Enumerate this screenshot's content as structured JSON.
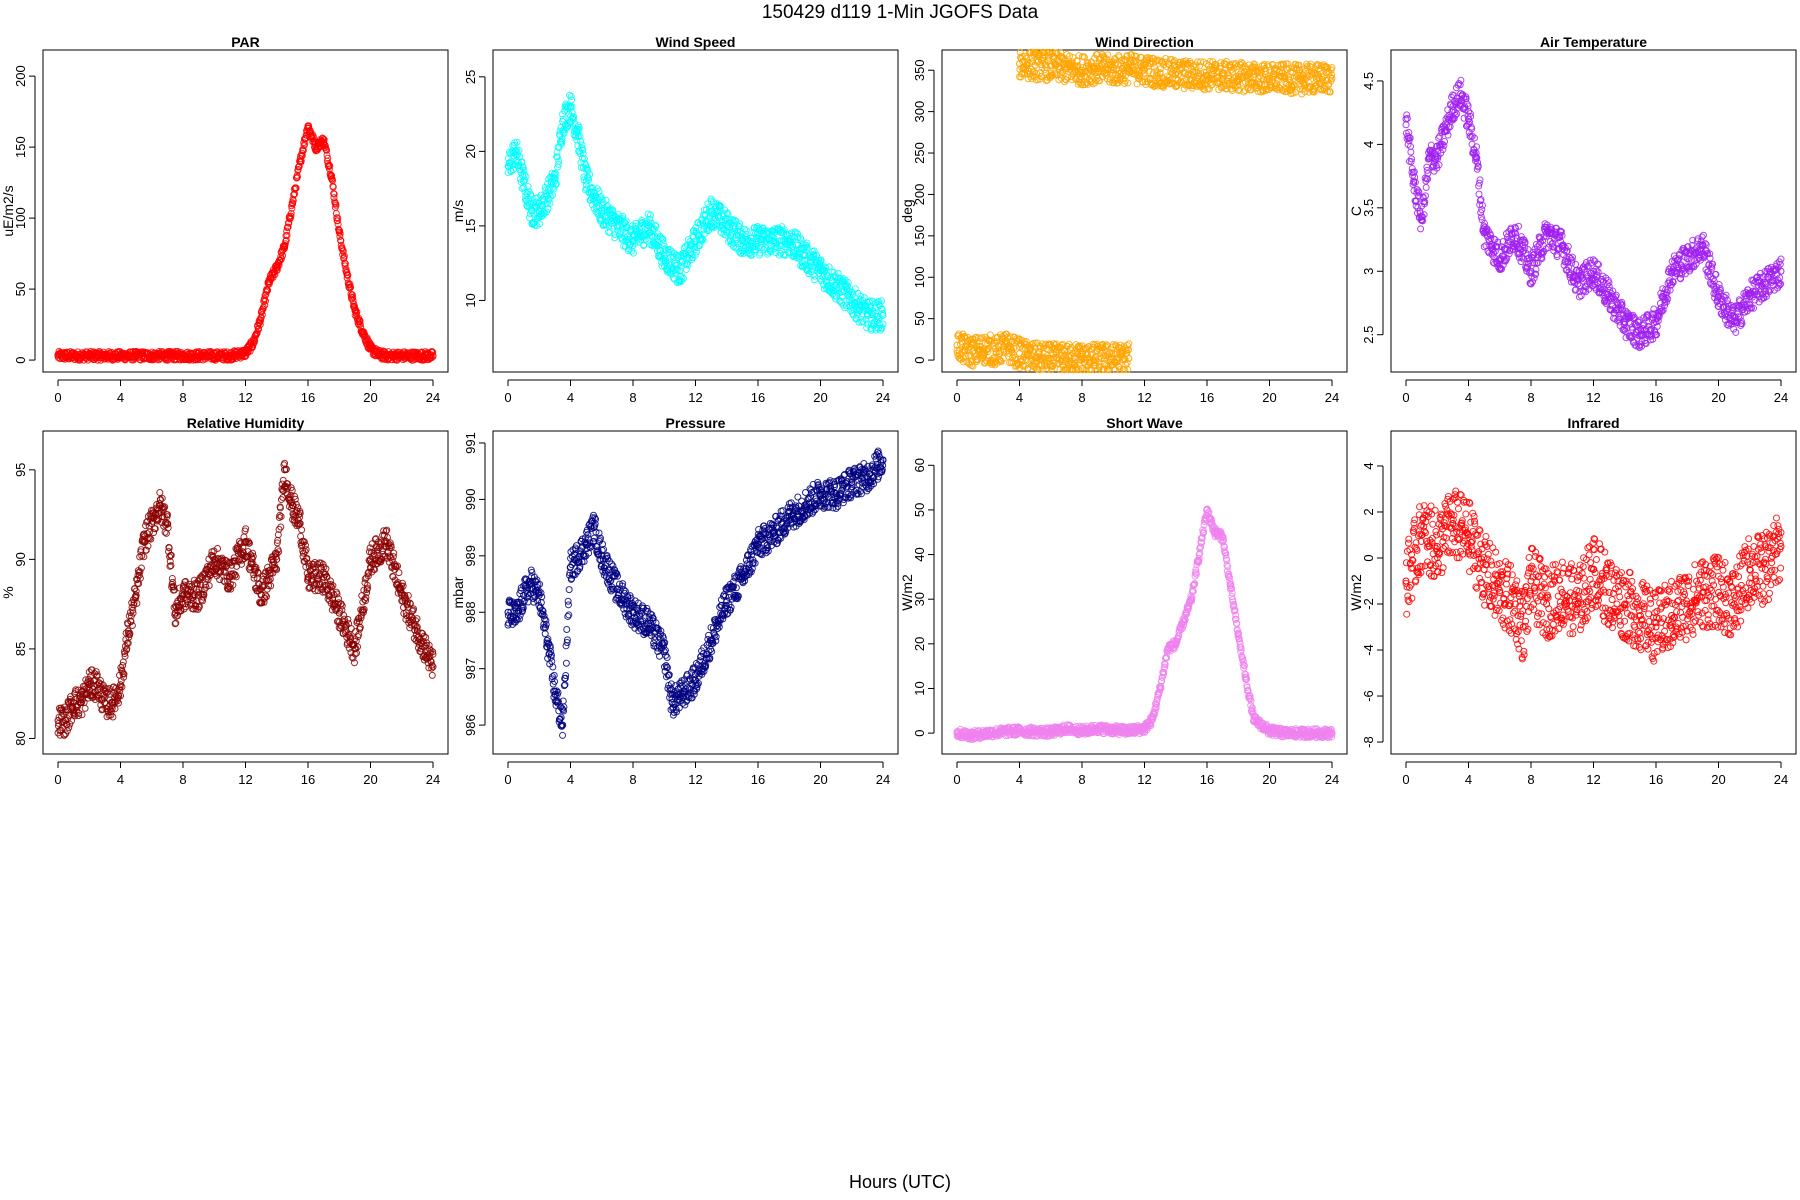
{
  "figure": {
    "title": "150429   d119   1-Min  JGOFS Data",
    "xlabel": "Hours (UTC)"
  },
  "chart_data": [
    {
      "type": "scatter",
      "title": "PAR",
      "ylabel": "uE/m2/s",
      "color": "#ff0000",
      "xlim": [
        0,
        24
      ],
      "ylim": [
        0,
        210
      ],
      "xticks": [
        0,
        4,
        8,
        12,
        16,
        20,
        24
      ],
      "yticks": [
        0,
        50,
        100,
        150,
        200
      ],
      "x": [
        0,
        1,
        2,
        3,
        4,
        5,
        6,
        7,
        8,
        9,
        10,
        11,
        12,
        12.5,
        13,
        13.5,
        14,
        14.5,
        15,
        15.5,
        16,
        16.5,
        17,
        17.5,
        18,
        18.5,
        19,
        19.5,
        20,
        20.5,
        21,
        22,
        23,
        24
      ],
      "y": [
        3,
        3,
        3,
        3,
        3,
        3,
        3,
        3,
        3,
        3,
        3,
        3,
        5,
        12,
        30,
        55,
        65,
        80,
        110,
        140,
        165,
        150,
        155,
        130,
        90,
        60,
        35,
        20,
        8,
        4,
        3,
        3,
        3,
        3
      ]
    },
    {
      "type": "scatter",
      "title": "Wind Speed",
      "ylabel": "m/s",
      "color": "#00ffff",
      "xlim": [
        0,
        24
      ],
      "ylim": [
        6,
        26
      ],
      "xticks": [
        0,
        4,
        8,
        12,
        16,
        20,
        24
      ],
      "yticks": [
        10,
        15,
        20,
        25
      ],
      "x": [
        0,
        0.5,
        1,
        1.5,
        2,
        2.5,
        3,
        3.5,
        4,
        4.5,
        5,
        5.5,
        6,
        7,
        8,
        9,
        10,
        11,
        12,
        13,
        14,
        15,
        16,
        17,
        18,
        19,
        20,
        21,
        22,
        23,
        24
      ],
      "y": [
        19,
        20,
        18,
        16,
        16,
        17,
        18,
        22,
        23,
        21,
        18,
        17,
        16,
        15,
        14,
        15,
        13,
        12,
        14,
        16,
        15,
        14,
        14,
        14,
        14,
        13,
        12,
        11,
        10,
        9,
        9
      ]
    },
    {
      "type": "scatter",
      "title": "Wind Direction",
      "ylabel": "deg",
      "color": "#ffa500",
      "xlim": [
        0,
        24
      ],
      "ylim": [
        0,
        360
      ],
      "xticks": [
        0,
        4,
        8,
        12,
        16,
        20,
        24
      ],
      "yticks": [
        0,
        50,
        100,
        150,
        200,
        250,
        300,
        350
      ],
      "x": [
        0,
        0.5,
        1,
        1.5,
        2,
        2.5,
        3,
        3.5,
        4,
        4.5,
        5,
        6,
        7,
        7.5,
        8,
        11,
        4,
        5,
        6,
        7,
        8,
        9,
        10,
        11,
        12,
        13,
        14,
        15,
        16,
        17,
        18,
        19,
        20,
        21,
        22,
        23,
        24
      ],
      "y": [
        18,
        12,
        10,
        12,
        14,
        10,
        16,
        12,
        8,
        5,
        3,
        2,
        2,
        3,
        2,
        2,
        358,
        356,
        355,
        352,
        350,
        352,
        350,
        352,
        350,
        347,
        345,
        344,
        344,
        343,
        342,
        341,
        340,
        340,
        339,
        340,
        340
      ]
    },
    {
      "type": "scatter",
      "title": "Air Temperature",
      "ylabel": "C",
      "color": "#a020f0",
      "xlim": [
        0,
        24
      ],
      "ylim": [
        2.3,
        4.65
      ],
      "xticks": [
        0,
        4,
        8,
        12,
        16,
        20,
        24
      ],
      "yticks": [
        2.5,
        3.0,
        3.5,
        4.0,
        4.5
      ],
      "x": [
        0,
        0.5,
        1,
        1.5,
        2,
        2.5,
        3,
        3.5,
        4,
        4.5,
        5,
        5.5,
        6,
        7,
        8,
        9,
        10,
        11,
        12,
        13,
        14,
        15,
        16,
        17,
        18,
        19,
        20,
        21,
        22,
        23,
        24
      ],
      "y": [
        4.2,
        3.7,
        3.4,
        3.9,
        3.9,
        4.1,
        4.3,
        4.4,
        4.2,
        3.9,
        3.3,
        3.2,
        3.1,
        3.3,
        3.0,
        3.3,
        3.2,
        2.9,
        3.0,
        2.8,
        2.6,
        2.5,
        2.6,
        3.0,
        3.1,
        3.2,
        2.8,
        2.6,
        2.8,
        2.9,
        3.0
      ]
    },
    {
      "type": "scatter",
      "title": "Relative Humidity",
      "ylabel": "%",
      "color": "#8b0000",
      "xlim": [
        0,
        24
      ],
      "ylim": [
        79.8,
        96.5
      ],
      "xticks": [
        0,
        4,
        8,
        12,
        16,
        20,
        24
      ],
      "yticks": [
        80,
        85,
        90,
        95
      ],
      "x": [
        0,
        0.5,
        1,
        1.5,
        2,
        2.5,
        3,
        3.5,
        4,
        4.5,
        5,
        5.5,
        6,
        6.5,
        7,
        7.5,
        8,
        9,
        10,
        11,
        12,
        13,
        14,
        14.5,
        15,
        15.5,
        16,
        17,
        18,
        19,
        20,
        21,
        22,
        23,
        24
      ],
      "y": [
        81,
        81,
        82,
        82,
        83,
        83,
        82,
        82,
        83,
        86,
        88,
        91,
        92,
        93,
        92,
        87,
        88,
        88,
        90,
        89,
        91,
        88,
        90,
        95,
        93,
        92,
        89,
        89,
        87,
        85,
        90,
        91,
        88,
        86,
        84
      ]
    },
    {
      "type": "scatter",
      "title": "Pressure",
      "ylabel": "mbar",
      "color": "#000080",
      "xlim": [
        0,
        24
      ],
      "ylim": [
        985.7,
        991
      ],
      "xticks": [
        0,
        4,
        8,
        12,
        16,
        20,
        24
      ],
      "yticks": [
        986,
        987,
        988,
        989,
        990,
        991
      ],
      "x": [
        0,
        0.5,
        1,
        1.5,
        2,
        2.5,
        3,
        3.5,
        4,
        5,
        5.5,
        6,
        7,
        8,
        9,
        10,
        10.5,
        11,
        12,
        13,
        14,
        15,
        16,
        17,
        18,
        19,
        20,
        21,
        22,
        23,
        24
      ],
      "y": [
        988,
        987.9,
        988.3,
        988.5,
        988.3,
        987.5,
        986.6,
        986,
        988.8,
        989.2,
        989.5,
        989,
        988.4,
        988,
        987.8,
        987.3,
        986.4,
        986.5,
        986.8,
        987.5,
        988.2,
        988.6,
        989.2,
        989.4,
        989.7,
        989.9,
        990.1,
        990.1,
        990.3,
        990.4,
        990.7
      ]
    },
    {
      "type": "scatter",
      "title": "Short Wave",
      "ylabel": "W/m2",
      "color": "#ee82ee",
      "xlim": [
        0,
        24
      ],
      "ylim": [
        -2,
        65
      ],
      "xticks": [
        0,
        4,
        8,
        12,
        16,
        20,
        24
      ],
      "yticks": [
        0,
        10,
        20,
        30,
        40,
        50,
        60
      ],
      "x": [
        0,
        1,
        2,
        3,
        4,
        5,
        6,
        7,
        8,
        9,
        10,
        11,
        12,
        12.5,
        13,
        13.5,
        14,
        14.5,
        15,
        15.5,
        16,
        16.5,
        17,
        17.5,
        18,
        18.5,
        19,
        20,
        21,
        22,
        23,
        24
      ],
      "y": [
        0,
        -0.5,
        0,
        0.3,
        0.5,
        0.3,
        0.2,
        1,
        0.5,
        1,
        0.7,
        0.5,
        1,
        3,
        10,
        19,
        20,
        25,
        30,
        40,
        50,
        45,
        44,
        33,
        22,
        12,
        3,
        0.5,
        0,
        0,
        0,
        0
      ]
    },
    {
      "type": "scatter",
      "title": "Infrared",
      "ylabel": "W/m2",
      "color": "#ff0000",
      "xlim": [
        0,
        24
      ],
      "ylim": [
        -8,
        5
      ],
      "xticks": [
        0,
        4,
        8,
        12,
        16,
        20,
        24
      ],
      "yticks": [
        -8,
        -6,
        -4,
        -2,
        0,
        2,
        4
      ],
      "x": [
        0,
        1,
        2,
        3,
        4,
        5,
        6,
        7,
        7.5,
        8,
        9,
        10,
        11,
        12,
        13,
        14,
        15,
        16,
        17,
        18,
        19,
        20,
        21,
        22,
        23,
        24
      ],
      "y": [
        -1,
        1,
        0.5,
        1.5,
        1,
        -0.5,
        -1.5,
        -2,
        -3,
        -1,
        -2,
        -1.5,
        -2,
        -0.5,
        -1.5,
        -2,
        -2.5,
        -3,
        -2.5,
        -2,
        -1.5,
        -1.5,
        -2,
        -0.5,
        -0.5,
        0.5
      ]
    }
  ]
}
